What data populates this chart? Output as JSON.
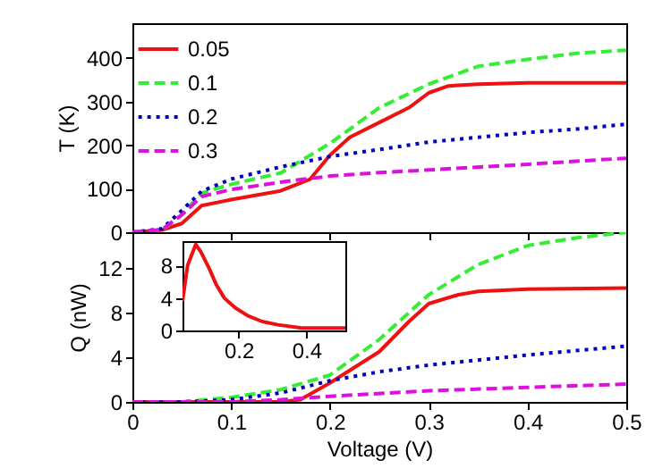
{
  "chart_data": [
    {
      "type": "line",
      "ylabel": "T (K)",
      "xlim": [
        0,
        0.5
      ],
      "xticks": [
        0,
        0.1,
        0.2,
        0.3,
        0.4,
        0.5
      ],
      "ylim": [
        0,
        480
      ],
      "yticks": [
        0,
        100,
        200,
        300,
        400
      ],
      "tick_labels": "y",
      "legend": "top left",
      "series": [
        {
          "name": "0.05",
          "color": "#ee1111",
          "line_style": "solid",
          "x": [
            0,
            0.03,
            0.05,
            0.07,
            0.1,
            0.15,
            0.18,
            0.2,
            0.22,
            0.25,
            0.28,
            0.3,
            0.32,
            0.35,
            0.4,
            0.5
          ],
          "values": [
            0,
            5,
            20,
            61,
            75,
            95,
            122,
            177,
            218,
            252,
            286,
            320,
            336,
            340,
            343,
            343
          ]
        },
        {
          "name": "0.1",
          "color": "#33ee33",
          "line_style": "dashed",
          "x": [
            0,
            0.03,
            0.05,
            0.07,
            0.1,
            0.15,
            0.2,
            0.25,
            0.3,
            0.35,
            0.4,
            0.45,
            0.5
          ],
          "values": [
            0,
            5,
            40,
            90,
            110,
            136,
            204,
            286,
            340,
            381,
            397,
            411,
            418
          ]
        },
        {
          "name": "0.2",
          "color": "#0000bb",
          "line_style": "dotted",
          "x": [
            0,
            0.03,
            0.05,
            0.07,
            0.1,
            0.15,
            0.2,
            0.25,
            0.3,
            0.35,
            0.4,
            0.45,
            0.5
          ],
          "values": [
            0,
            8,
            50,
            94,
            122,
            150,
            174,
            190,
            207,
            218,
            229,
            237,
            248
          ]
        },
        {
          "name": "0.3",
          "color": "#dd11dd",
          "line_style": "dashed",
          "x": [
            0,
            0.03,
            0.05,
            0.07,
            0.1,
            0.15,
            0.2,
            0.25,
            0.3,
            0.4,
            0.5
          ],
          "values": [
            0,
            6,
            40,
            82,
            98,
            115,
            129,
            137,
            143,
            156,
            170
          ]
        }
      ]
    },
    {
      "type": "line",
      "ylabel": "Q (nW)",
      "xlabel": "Voltage (V)",
      "xlim": [
        0,
        0.5
      ],
      "xticks": [
        0,
        0.1,
        0.2,
        0.3,
        0.4,
        0.5
      ],
      "ylim": [
        0,
        15.2
      ],
      "yticks": [
        0,
        4,
        8,
        12
      ],
      "series": [
        {
          "color": "#ee1111",
          "line_style": "solid",
          "x": [
            0,
            0.1,
            0.15,
            0.17,
            0.2,
            0.25,
            0.28,
            0.3,
            0.33,
            0.35,
            0.4,
            0.5
          ],
          "values": [
            0,
            0,
            0,
            0.2,
            1.7,
            4.5,
            7.2,
            8.8,
            9.6,
            9.9,
            10.1,
            10.2
          ]
        },
        {
          "color": "#33ee33",
          "line_style": "dashed",
          "x": [
            0,
            0.05,
            0.1,
            0.15,
            0.2,
            0.25,
            0.3,
            0.35,
            0.4,
            0.45,
            0.5
          ],
          "values": [
            0,
            0,
            0.4,
            1.1,
            2.4,
            5.6,
            9.6,
            12.3,
            14,
            14.7,
            15.2
          ]
        },
        {
          "color": "#0000bb",
          "line_style": "dotted",
          "x": [
            0,
            0.05,
            0.1,
            0.15,
            0.2,
            0.25,
            0.3,
            0.4,
            0.5
          ],
          "values": [
            0,
            0,
            0.2,
            0.8,
            1.9,
            2.7,
            3.3,
            4.2,
            5.0
          ]
        },
        {
          "color": "#dd11dd",
          "line_style": "dashed",
          "x": [
            0,
            0.1,
            0.15,
            0.2,
            0.3,
            0.4,
            0.5
          ],
          "values": [
            0,
            0,
            0.2,
            0.5,
            1.0,
            1.3,
            1.6
          ]
        }
      ]
    },
    {
      "type": "line",
      "xlim": [
        0.035,
        0.515
      ],
      "xticks": [
        0.2,
        0.4
      ],
      "ylim": [
        0,
        11
      ],
      "yticks": [
        0,
        4,
        8
      ],
      "series": [
        {
          "color": "#ee1111",
          "line_style": "solid",
          "x": [
            0.035,
            0.05,
            0.074,
            0.09,
            0.114,
            0.135,
            0.158,
            0.19,
            0.228,
            0.27,
            0.316,
            0.386,
            0.45,
            0.515
          ],
          "values": [
            3.6,
            8,
            10.6,
            9.6,
            7.6,
            5.6,
            4.0,
            2.8,
            1.8,
            1.1,
            0.7,
            0.3,
            0.3,
            0.3
          ]
        }
      ]
    }
  ]
}
